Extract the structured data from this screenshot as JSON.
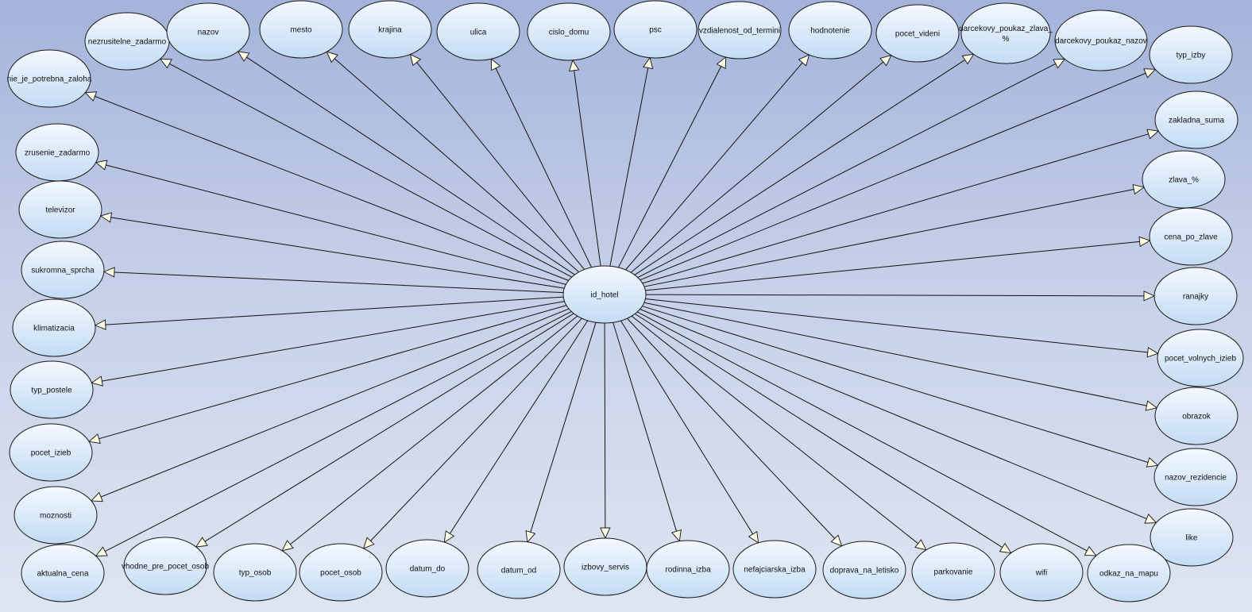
{
  "hub": "id_hotel",
  "attributes": [
    "nezrusitelne_zadarmo",
    "nazov",
    "mesto",
    "krajina",
    "ulica",
    "cislo_domu",
    "psc",
    "vzdialenost_od_termini",
    "hodnotenie",
    "pocet_videni",
    "darcekovy_poukaz_zlava_%",
    "darcekovy_poukaz_nazov",
    "typ_izby",
    "nie_je_potrebna_zaloha",
    "zakladna_suma",
    "zrusenie_zadarmo",
    "zlava_%",
    "televizor",
    "cena_po_zlave",
    "sukromna_sprcha",
    "ranajky",
    "klimatizacia",
    "pocet_volnych_izieb",
    "typ_postele",
    "obrazok",
    "pocet_izieb",
    "nazov_rezidencie",
    "moznosti",
    "like",
    "aktualna_cena",
    "vhodne_pre_pocet_osob",
    "typ_osob",
    "pocet_osob",
    "datum_do",
    "datum_od",
    "izbovy_servis",
    "rodinna_izba",
    "nefajciarska_izba",
    "doprava_na_letisko",
    "parkovanie",
    "wifi",
    "odkaz_na_mapu"
  ],
  "colors": {
    "ellipse_top": "#f4f8fe",
    "ellipse_bottom": "#c2dcf5",
    "outline": "#1a1a1a",
    "arrowhead": "#ffffe8"
  }
}
